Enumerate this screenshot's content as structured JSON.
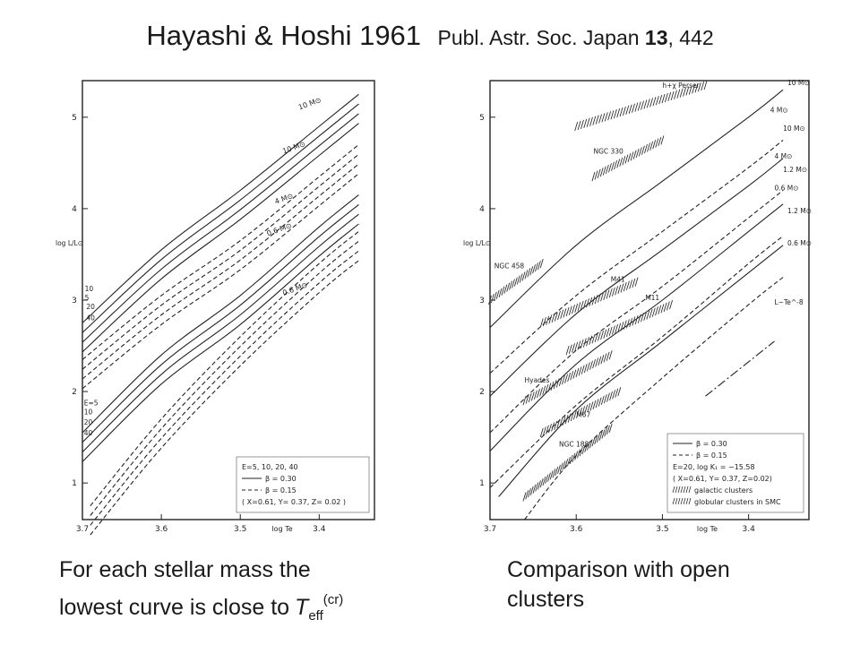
{
  "slide": {
    "title_main": "Hayashi & Hoshi 1961",
    "title_ref_prefix": "Publ. Astr. Soc. Japan",
    "title_ref_volume": "13",
    "title_ref_suffix": ", 442"
  },
  "captions": {
    "left_line1": "For each stellar mass the",
    "left_line2": "lowest curve is close to",
    "left_symbol": "T",
    "left_sub": "eff",
    "left_sup": "(cr)",
    "right_line1": "Comparison with open",
    "right_line2": "clusters"
  },
  "chart_data": [
    {
      "type": "line",
      "title": "",
      "xlabel": "log Te",
      "ylabel": "log L/L⊙",
      "xlim": [
        3.7,
        3.33
      ],
      "ylim": [
        0.6,
        5.4
      ],
      "x_ticks": [
        "3.7",
        "3.6",
        "3.5",
        "3.4"
      ],
      "y_ticks": [
        "1",
        "2",
        "3",
        "4",
        "5"
      ],
      "grid": false,
      "legend": {
        "position": "bottom-right",
        "lines": [
          "E=5, 10, 20, 40",
          "β = 0.30",
          "β = 0.15",
          "( X=0.61, Y= 0.37, Z= 0.02 )"
        ]
      },
      "mass_labels": [
        "10 M⊙",
        "10 M⊙",
        "4 M⊙",
        "0.6 M⊙",
        "0.6 M⊙"
      ],
      "E_labels": [
        "10",
        "5",
        "20",
        "40",
        "E=5",
        "10",
        "20",
        "40"
      ],
      "series": [
        {
          "name": "10 M⊙, β=0.30",
          "style": "solid",
          "count": 4,
          "x": [
            3.7,
            3.6,
            3.5,
            3.4,
            3.35
          ],
          "y": [
            2.75,
            3.55,
            4.2,
            4.9,
            5.25
          ]
        },
        {
          "name": "10 M⊙, β=0.15",
          "style": "dashed",
          "count": 4,
          "x": [
            3.7,
            3.6,
            3.5,
            3.4,
            3.35
          ],
          "y": [
            2.35,
            3.05,
            3.65,
            4.35,
            4.7
          ]
        },
        {
          "name": "4 M⊙, β=0.30",
          "style": "solid",
          "count": 4,
          "x": [
            3.7,
            3.6,
            3.5,
            3.4,
            3.35
          ],
          "y": [
            1.55,
            2.4,
            3.05,
            3.8,
            4.15
          ]
        },
        {
          "name": "0.6 M⊙, β=0.15",
          "style": "dashed",
          "count": 4,
          "x": [
            3.69,
            3.6,
            3.5,
            3.4,
            3.35
          ],
          "y": [
            0.75,
            1.7,
            2.6,
            3.4,
            3.75
          ]
        }
      ]
    },
    {
      "type": "line",
      "title": "",
      "xlabel": "log Te",
      "ylabel": "log L/L⊙",
      "xlim": [
        3.7,
        3.33
      ],
      "ylim": [
        0.6,
        5.4
      ],
      "x_ticks": [
        "3.7",
        "3.6",
        "3.5",
        "3.4"
      ],
      "y_ticks": [
        "1",
        "2",
        "3",
        "4",
        "5"
      ],
      "grid": false,
      "legend": {
        "position": "bottom-right",
        "lines": [
          "β = 0.30",
          "β = 0.15",
          "E=20, log K₁ = −15.58",
          "( X=0.61, Y= 0.37, Z=0.02)",
          "galactic clusters",
          "globular clusters in SMC"
        ]
      },
      "mass_labels": [
        "10 M⊙",
        "4 M⊙",
        "10 M⊙",
        "4 M⊙",
        "1.2 M⊙",
        "0.6 M⊙",
        "1.2 M⊙",
        "0.6 M⊙"
      ],
      "line_label": "L~Te^-8",
      "cluster_labels": [
        "h+χ Perser",
        "NGC 330",
        "NGC 458",
        "M41",
        "M11",
        "Hyades",
        "M67",
        "NGC 188"
      ],
      "series": [
        {
          "name": "10 M⊙",
          "style": "solid",
          "x": [
            3.7,
            3.6,
            3.5,
            3.4,
            3.36
          ],
          "y": [
            2.7,
            3.6,
            4.3,
            5.0,
            5.3
          ]
        },
        {
          "name": "10 M⊙",
          "style": "dashed",
          "x": [
            3.7,
            3.6,
            3.5,
            3.4,
            3.36
          ],
          "y": [
            2.2,
            3.05,
            3.75,
            4.45,
            4.75
          ]
        },
        {
          "name": "4 M⊙",
          "style": "solid",
          "x": [
            3.7,
            3.6,
            3.5,
            3.4,
            3.36
          ],
          "y": [
            1.95,
            2.85,
            3.55,
            4.25,
            4.55
          ]
        },
        {
          "name": "4 M⊙",
          "style": "dashed",
          "x": [
            3.7,
            3.6,
            3.5,
            3.4,
            3.36
          ],
          "y": [
            1.55,
            2.45,
            3.15,
            3.9,
            4.2
          ]
        },
        {
          "name": "1.2 M⊙",
          "style": "solid",
          "x": [
            3.7,
            3.6,
            3.5,
            3.4,
            3.36
          ],
          "y": [
            1.35,
            2.3,
            3.0,
            3.75,
            4.05
          ]
        },
        {
          "name": "1.2 M⊙",
          "style": "dashed",
          "x": [
            3.7,
            3.6,
            3.5,
            3.4,
            3.36
          ],
          "y": [
            0.95,
            1.85,
            2.6,
            3.4,
            3.7
          ]
        },
        {
          "name": "0.6 M⊙",
          "style": "solid",
          "x": [
            3.69,
            3.6,
            3.5,
            3.4,
            3.36
          ],
          "y": [
            0.85,
            1.8,
            2.55,
            3.3,
            3.6
          ]
        },
        {
          "name": "0.6 M⊙",
          "style": "dashed",
          "x": [
            3.66,
            3.6,
            3.5,
            3.4,
            3.36
          ],
          "y": [
            0.6,
            1.3,
            2.15,
            2.95,
            3.25
          ]
        },
        {
          "name": "L~Te^-8",
          "style": "dashdot",
          "x": [
            3.45,
            3.37
          ],
          "y": [
            1.95,
            2.55
          ]
        }
      ],
      "clusters": [
        {
          "name": "h+χ Perser",
          "x": [
            3.6,
            3.45
          ],
          "y": [
            4.9,
            5.35
          ]
        },
        {
          "name": "NGC 330",
          "x": [
            3.58,
            3.5
          ],
          "y": [
            4.35,
            4.75
          ]
        },
        {
          "name": "NGC 458",
          "x": [
            3.7,
            3.64
          ],
          "y": [
            3.0,
            3.4
          ]
        },
        {
          "name": "M41",
          "x": [
            3.64,
            3.53
          ],
          "y": [
            2.75,
            3.2
          ]
        },
        {
          "name": "M11",
          "x": [
            3.61,
            3.49
          ],
          "y": [
            2.45,
            2.95
          ]
        },
        {
          "name": "Hyades",
          "x": [
            3.66,
            3.56
          ],
          "y": [
            1.9,
            2.4
          ]
        },
        {
          "name": "M67",
          "x": [
            3.64,
            3.55
          ],
          "y": [
            1.55,
            2.0
          ]
        },
        {
          "name": "NGC 188",
          "x": [
            3.66,
            3.56
          ],
          "y": [
            0.85,
            1.6
          ]
        }
      ]
    }
  ]
}
